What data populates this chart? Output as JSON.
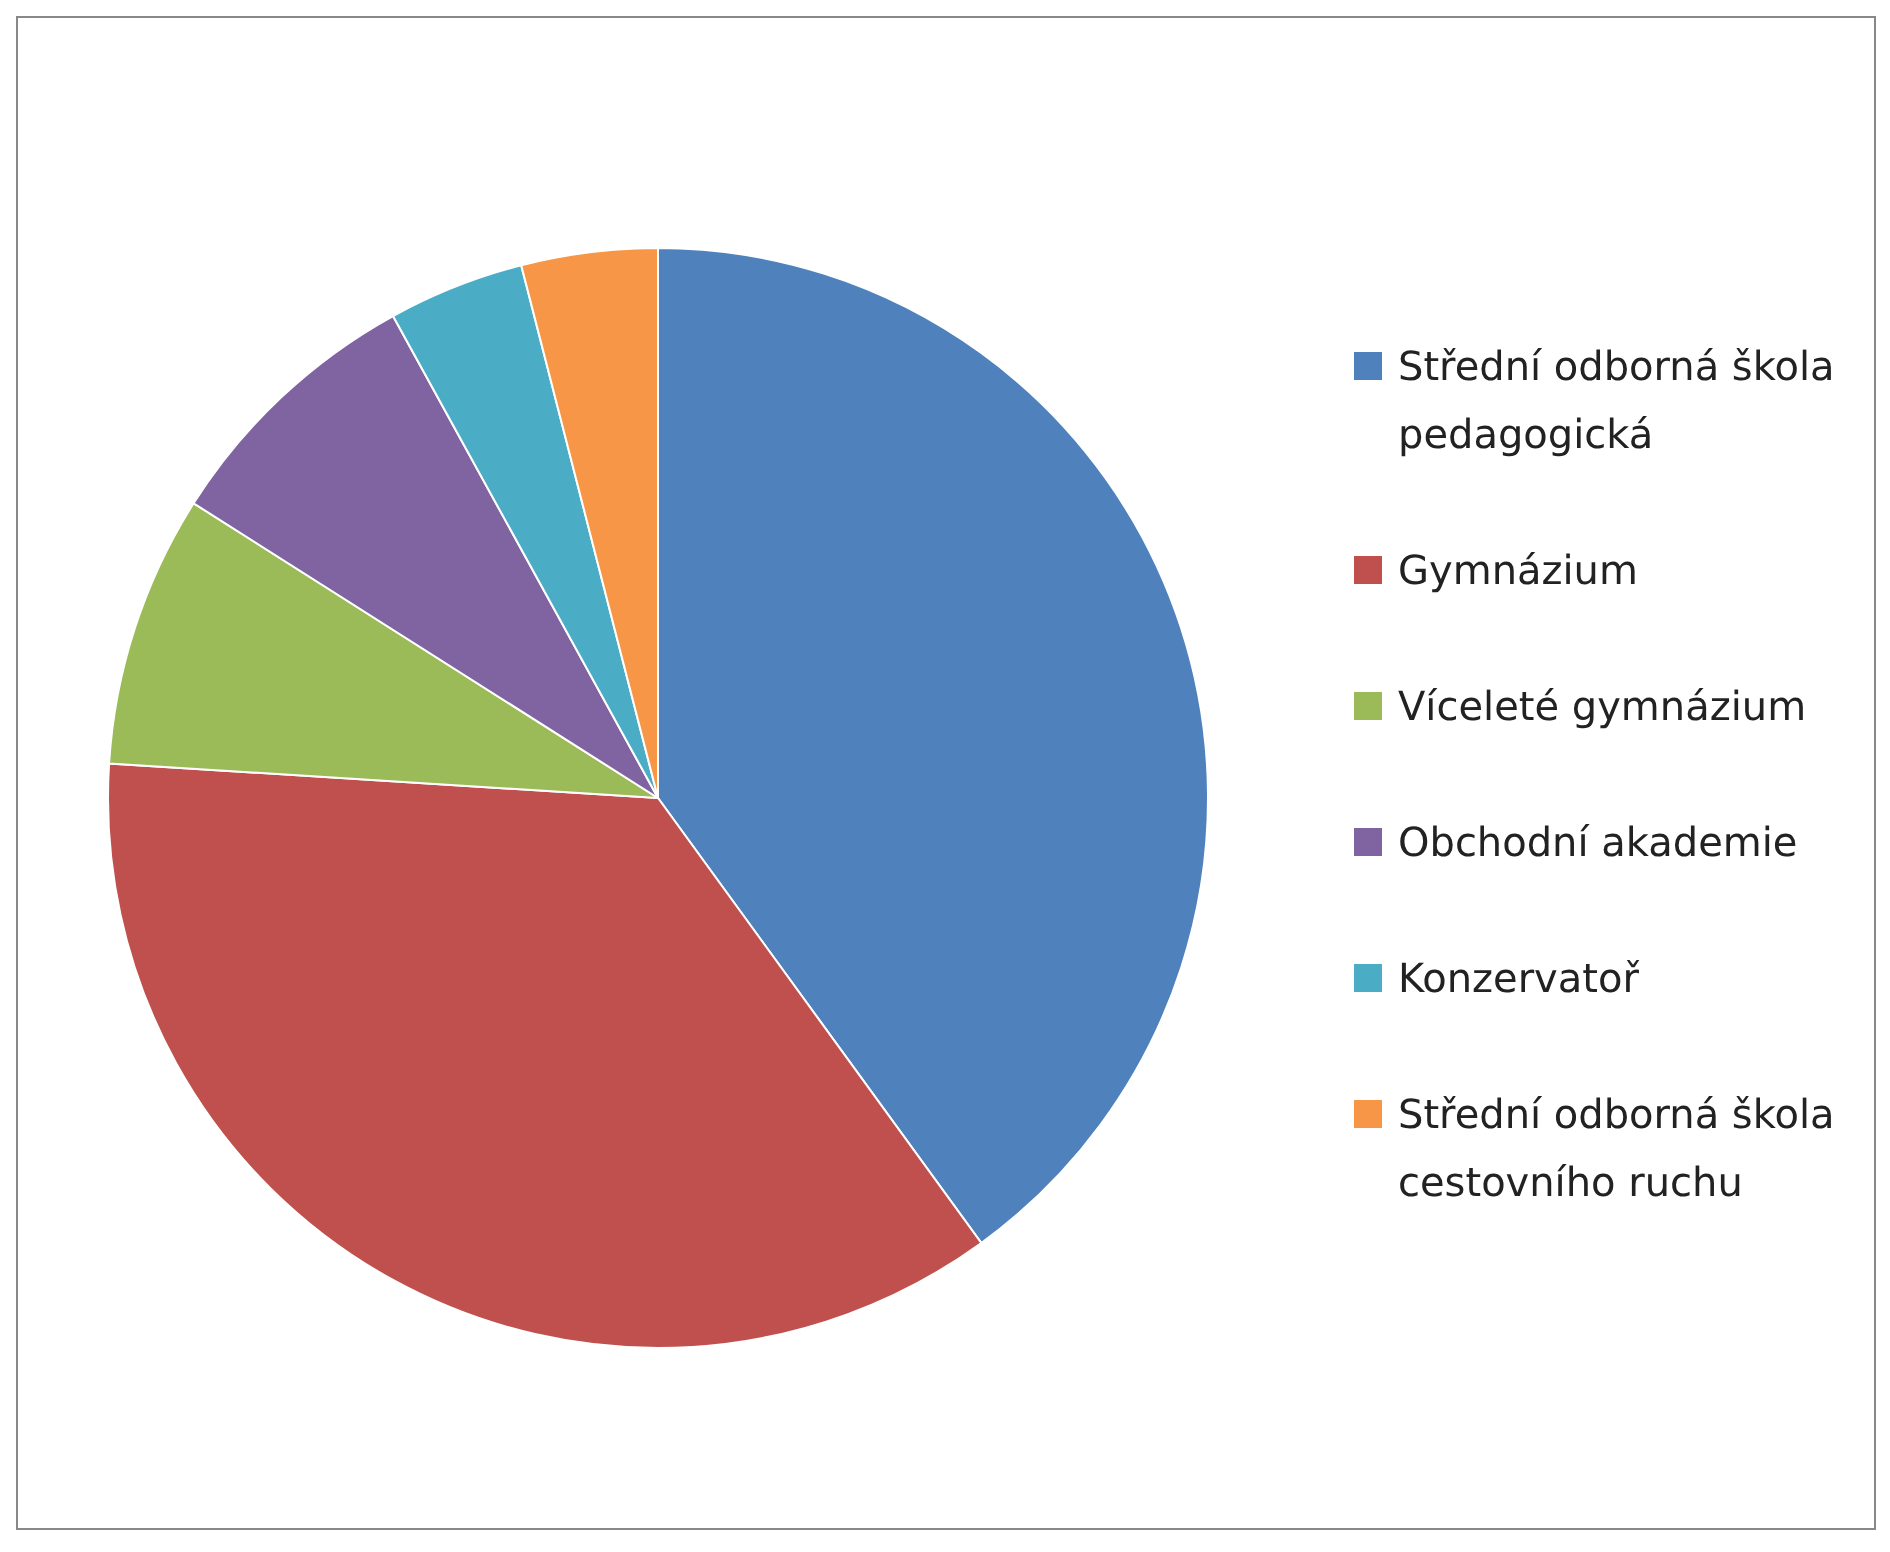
{
  "chart_data": {
    "type": "pie",
    "categories": [
      "Střední odborná škola pedagogická",
      "Gymnázium",
      "Víceleté gymnázium",
      "Obchodní akademie",
      "Konzervatoř",
      "Střední odborná škola cestovního ruchu"
    ],
    "values": [
      40,
      36,
      8,
      8,
      4,
      4
    ],
    "colors": [
      "#4f81bd",
      "#c0504d",
      "#9bbb59",
      "#8064a2",
      "#4bacc6",
      "#f79646"
    ],
    "legend": "right"
  }
}
